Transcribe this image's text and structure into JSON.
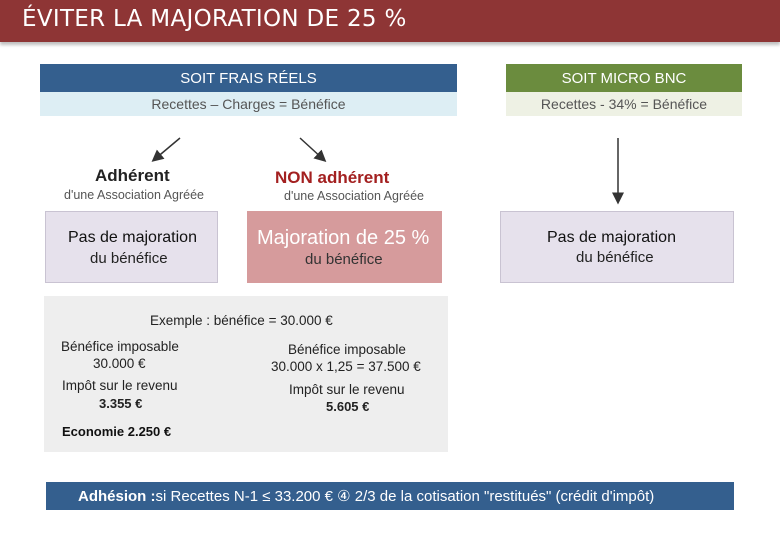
{
  "title": "ÉVITER LA MAJORATION DE 25 %",
  "left_header": {
    "title": "SOIT  FRAIS RÉELS",
    "formula": "Recettes – Charges = Bénéfice"
  },
  "right_header": {
    "title": "SOIT MICRO BNC",
    "formula": "Recettes - 34% = Bénéfice"
  },
  "categories": {
    "adherent": {
      "title": "Adhérent",
      "sub": "d'une Association Agréée"
    },
    "non_adherent": {
      "title": "NON adhérent",
      "sub": "d'une Association Agréée"
    }
  },
  "boxes": {
    "adherent": {
      "line1": "Pas de majoration",
      "line2": "du bénéfice"
    },
    "non_adherent": {
      "line1": "Majoration de 25 %",
      "line2": "du bénéfice"
    },
    "micro": {
      "line1": "Pas de majoration",
      "line2": "du bénéfice"
    }
  },
  "example": {
    "heading": "Exemple : bénéfice = 30.000 €",
    "left": {
      "benefice_label": "Bénéfice imposable",
      "benefice_value": "30.000  €",
      "impot_label": "Impôt sur le revenu",
      "impot_value": "3.355 €"
    },
    "right": {
      "benefice_label": "Bénéfice imposable",
      "benefice_value": "30.000 x 1,25 = 37.500 €",
      "impot_label": "Impôt sur le revenu",
      "impot_value": "5.605 €"
    },
    "economie": "Economie  2.250 €"
  },
  "bottom": {
    "label": "Adhésion : ",
    "text": " si Recettes N-1 ≤ 33.200 €  ④  2/3 de la cotisation \"restitués\" (crédit d'impôt)"
  },
  "colors": {
    "title_bar": "#8e3535",
    "blue": "#345f8e",
    "green": "#6b8c3e",
    "pink": "#d69b9c",
    "non_adherent_text": "#a32020"
  }
}
